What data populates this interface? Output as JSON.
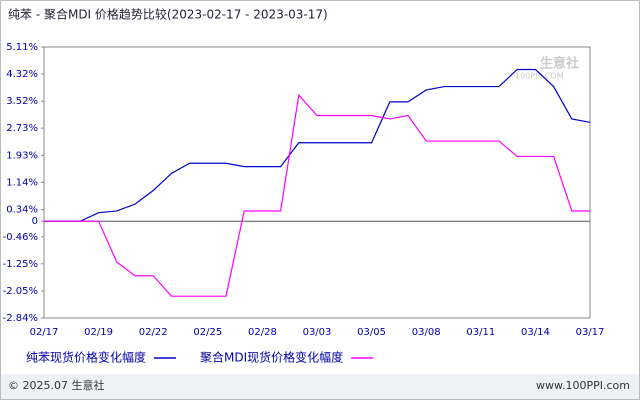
{
  "chart_data": {
    "type": "line",
    "title": "纯苯 - 聚合MDI 价格趋势比较(2023-02-17 - 2023-03-17)",
    "categories": [
      "02/17",
      null,
      null,
      "02/19",
      null,
      null,
      "02/22",
      null,
      null,
      "02/25",
      null,
      null,
      "02/28",
      null,
      null,
      "03/03",
      null,
      null,
      "03/05",
      null,
      null,
      "03/08",
      null,
      null,
      "03/11",
      null,
      null,
      "03/14",
      null,
      null,
      "03/17"
    ],
    "series": [
      {
        "name": "纯苯现货价格变化幅度",
        "color": "#0000cc",
        "values": [
          0,
          0,
          0,
          0.25,
          0.3,
          0.5,
          0.9,
          1.4,
          1.7,
          1.7,
          1.7,
          1.6,
          1.6,
          1.6,
          2.3,
          2.3,
          2.3,
          2.3,
          2.3,
          3.5,
          3.5,
          3.85,
          3.95,
          3.95,
          3.95,
          3.95,
          4.45,
          4.45,
          3.95,
          3.0,
          2.9
        ]
      },
      {
        "name": "聚合MDI现货价格变化幅度",
        "color": "#ff00ff",
        "values": [
          0,
          0,
          0,
          0,
          -1.2,
          -1.6,
          -1.6,
          -2.2,
          -2.2,
          -2.2,
          -2.2,
          0.3,
          0.3,
          0.3,
          3.7,
          3.1,
          3.1,
          3.1,
          3.1,
          3.0,
          3.1,
          2.35,
          2.35,
          2.35,
          2.35,
          2.35,
          1.9,
          1.9,
          1.9,
          0.3,
          0.3
        ]
      }
    ],
    "ylim": [
      -2.84,
      5.11
    ],
    "yticks": [
      {
        "value": 5.11,
        "label": "5.11%"
      },
      {
        "value": 4.32,
        "label": "4.32%"
      },
      {
        "value": 3.52,
        "label": "3.52%"
      },
      {
        "value": 2.73,
        "label": "2.73%"
      },
      {
        "value": 1.93,
        "label": "1.93%"
      },
      {
        "value": 1.14,
        "label": "1.14%"
      },
      {
        "value": 0.34,
        "label": "0.34%"
      },
      0,
      {
        "value": -0.46,
        "label": "-0.46%"
      },
      {
        "value": -1.25,
        "label": "-1.25%"
      },
      {
        "value": -2.05,
        "label": "-2.05%"
      },
      {
        "value": -2.84,
        "label": "-2.84%"
      }
    ],
    "legend": "bottom"
  },
  "watermark": {
    "brand": "生意社",
    "url": "100PPI.COM"
  },
  "footer": {
    "copyright": "© 2025.07 生意社",
    "site": "www.100PPI.com"
  }
}
